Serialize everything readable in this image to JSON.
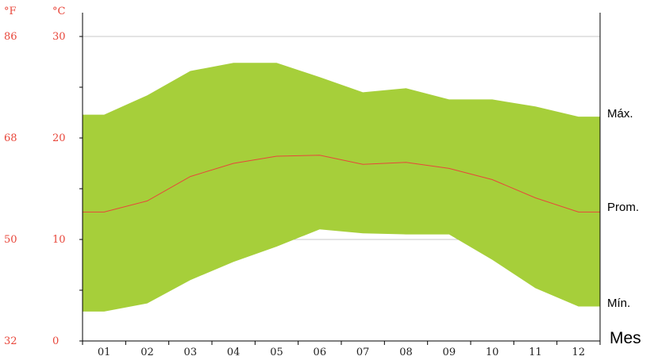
{
  "chart_data": {
    "type": "area",
    "fahrenheit_header": "°F",
    "celsius_header": "°C",
    "categories": [
      "01",
      "02",
      "03",
      "04",
      "05",
      "06",
      "07",
      "08",
      "09",
      "10",
      "11",
      "12"
    ],
    "series": [
      {
        "name": "Máx.",
        "values": [
          22.3,
          24.2,
          26.6,
          27.4,
          27.4,
          26.0,
          24.5,
          24.9,
          23.8,
          23.8,
          23.1,
          22.1
        ]
      },
      {
        "name": "Prom.",
        "values": [
          12.7,
          13.8,
          16.2,
          17.5,
          18.2,
          18.3,
          17.4,
          17.6,
          17.0,
          15.9,
          14.1,
          12.7
        ]
      },
      {
        "name": "Mín.",
        "values": [
          2.9,
          3.7,
          6.0,
          7.8,
          9.3,
          11.0,
          10.6,
          10.5,
          10.5,
          8.0,
          5.2,
          3.4
        ]
      }
    ],
    "celsius_ticks": [
      0,
      10,
      20,
      30
    ],
    "fahrenheit_ticks": [
      32,
      50,
      68,
      86
    ],
    "xlabel": "Mes",
    "ylim": [
      0,
      30
    ],
    "grid": true,
    "colors": {
      "band": "#a6cf3a",
      "avg_line": "#e8463a",
      "axis_labels": "#e8463a"
    }
  }
}
